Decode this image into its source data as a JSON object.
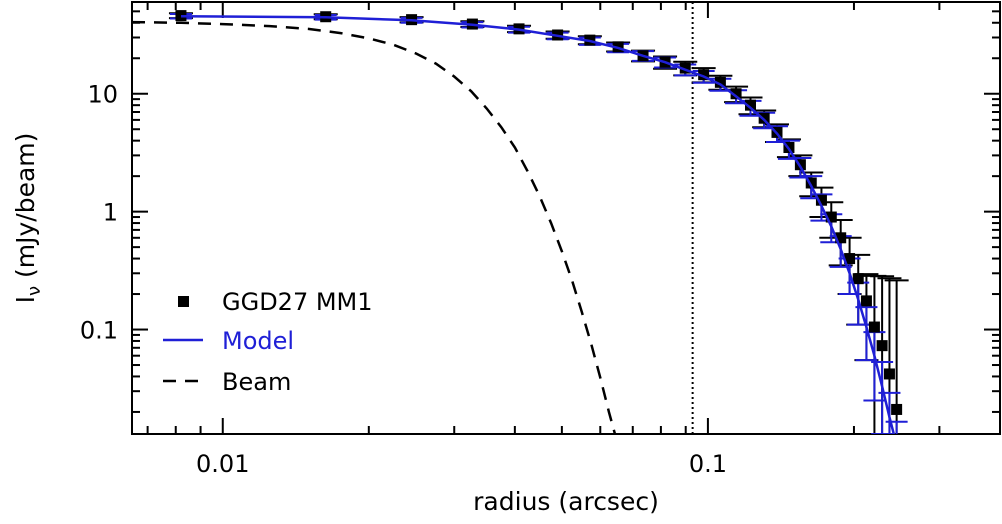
{
  "chart_data": {
    "type": "scatter",
    "xlabel": "radius (arcsec)",
    "ylabel": "Iν (mJy/beam)",
    "ylabel_main": "I",
    "ylabel_sub": "ν",
    "ylabel_unit": " (mJy/beam)",
    "x_scale": "log",
    "y_scale": "log",
    "xlim": [
      0.0065,
      0.4
    ],
    "ylim": [
      0.013,
      60
    ],
    "x_ticks": [
      {
        "value": 0.01,
        "label": "0.01"
      },
      {
        "value": 0.1,
        "label": "0.1"
      }
    ],
    "y_ticks": [
      {
        "value": 10,
        "label": "10"
      },
      {
        "value": 1,
        "label": "1"
      },
      {
        "value": 0.1,
        "label": "0.1"
      }
    ],
    "grid": false,
    "legend_position": "bottom-left",
    "reference_line": {
      "x": 0.093,
      "style": "dotted"
    },
    "series": [
      {
        "name": "GGD27 MM1",
        "color": "#000000",
        "marker": "square",
        "points": [
          {
            "x": 0.0082,
            "y": 46,
            "err": 2.2
          },
          {
            "x": 0.0163,
            "y": 45,
            "err": 2.2
          },
          {
            "x": 0.0245,
            "y": 42.5,
            "err": 2.2
          },
          {
            "x": 0.0327,
            "y": 39,
            "err": 2.2
          },
          {
            "x": 0.0408,
            "y": 35.5,
            "err": 2.2
          },
          {
            "x": 0.049,
            "y": 31.5,
            "err": 2.2
          },
          {
            "x": 0.0571,
            "y": 28.5,
            "err": 2.2
          },
          {
            "x": 0.0653,
            "y": 25,
            "err": 2.2
          },
          {
            "x": 0.0735,
            "y": 21,
            "err": 2.2
          },
          {
            "x": 0.0816,
            "y": 18.5,
            "err": 2.2
          },
          {
            "x": 0.0898,
            "y": 16.5,
            "err": 2.2
          },
          {
            "x": 0.098,
            "y": 14.5,
            "err": 2.0
          },
          {
            "x": 0.1061,
            "y": 12.5,
            "err": 1.7
          },
          {
            "x": 0.1143,
            "y": 10,
            "err": 1.5
          },
          {
            "x": 0.1224,
            "y": 8,
            "err": 1.3
          },
          {
            "x": 0.1306,
            "y": 6.2,
            "err": 1.0
          },
          {
            "x": 0.1388,
            "y": 4.7,
            "err": 0.8
          },
          {
            "x": 0.1469,
            "y": 3.5,
            "err": 0.6
          },
          {
            "x": 0.1551,
            "y": 2.5,
            "err": 0.5
          },
          {
            "x": 0.1633,
            "y": 1.75,
            "err": 0.4
          },
          {
            "x": 0.1714,
            "y": 1.25,
            "err": 0.35
          },
          {
            "x": 0.1796,
            "y": 0.9,
            "err": 0.3
          },
          {
            "x": 0.1878,
            "y": 0.6,
            "err": 0.25
          },
          {
            "x": 0.1959,
            "y": 0.4,
            "err": 0.2
          },
          {
            "x": 0.2041,
            "y": 0.27,
            "err": 0.16
          },
          {
            "x": 0.2122,
            "y": 0.175,
            "err": 0.12
          },
          {
            "x": 0.2204,
            "y": 0.105,
            "err": 0.18
          },
          {
            "x": 0.2286,
            "y": 0.073,
            "err": 0.21
          },
          {
            "x": 0.2367,
            "y": 0.042,
            "err": 0.23
          },
          {
            "x": 0.2449,
            "y": 0.021,
            "err": 0.24
          }
        ]
      },
      {
        "name": "Model",
        "color": "#1f1fd6",
        "style": "solid",
        "points": [
          {
            "x": 0.0082,
            "y": 45.5,
            "err": 2.0
          },
          {
            "x": 0.0163,
            "y": 44.5,
            "err": 2.0
          },
          {
            "x": 0.0245,
            "y": 42,
            "err": 2.0
          },
          {
            "x": 0.0327,
            "y": 38.5,
            "err": 2.0
          },
          {
            "x": 0.0408,
            "y": 35,
            "err": 2.0
          },
          {
            "x": 0.049,
            "y": 31,
            "err": 2.0
          },
          {
            "x": 0.0571,
            "y": 28,
            "err": 2.0
          },
          {
            "x": 0.0653,
            "y": 24.5,
            "err": 2.0
          },
          {
            "x": 0.0735,
            "y": 21,
            "err": 2.0
          },
          {
            "x": 0.0816,
            "y": 18.5,
            "err": 1.8
          },
          {
            "x": 0.0898,
            "y": 16,
            "err": 1.7
          },
          {
            "x": 0.098,
            "y": 14,
            "err": 1.6
          },
          {
            "x": 0.1061,
            "y": 12,
            "err": 1.4
          },
          {
            "x": 0.1143,
            "y": 9.5,
            "err": 1.2
          },
          {
            "x": 0.1224,
            "y": 7.6,
            "err": 1.1
          },
          {
            "x": 0.1306,
            "y": 6.0,
            "err": 0.9
          },
          {
            "x": 0.1388,
            "y": 4.6,
            "err": 0.7
          },
          {
            "x": 0.1469,
            "y": 3.4,
            "err": 0.6
          },
          {
            "x": 0.1551,
            "y": 2.4,
            "err": 0.45
          },
          {
            "x": 0.1633,
            "y": 1.65,
            "err": 0.35
          },
          {
            "x": 0.1714,
            "y": 1.12,
            "err": 0.28
          },
          {
            "x": 0.1796,
            "y": 0.75,
            "err": 0.2
          },
          {
            "x": 0.1878,
            "y": 0.48,
            "err": 0.14
          },
          {
            "x": 0.1959,
            "y": 0.3,
            "err": 0.1
          },
          {
            "x": 0.2041,
            "y": 0.18,
            "err": 0.07
          },
          {
            "x": 0.2122,
            "y": 0.105,
            "err": 0.05
          },
          {
            "x": 0.2204,
            "y": 0.06,
            "err": 0.035
          },
          {
            "x": 0.2286,
            "y": 0.033,
            "err": 0.02
          },
          {
            "x": 0.2367,
            "y": 0.018,
            "err": 0.011
          },
          {
            "x": 0.2449,
            "y": 0.0105,
            "err": 0.006
          }
        ]
      },
      {
        "name": "Beam",
        "color": "#000000",
        "style": "dashed",
        "points": [
          {
            "x": 0.0065,
            "y": 40.5
          },
          {
            "x": 0.0082,
            "y": 40
          },
          {
            "x": 0.01,
            "y": 39
          },
          {
            "x": 0.0125,
            "y": 37.5
          },
          {
            "x": 0.015,
            "y": 35.5
          },
          {
            "x": 0.0175,
            "y": 32.7
          },
          {
            "x": 0.02,
            "y": 29.5
          },
          {
            "x": 0.0225,
            "y": 26
          },
          {
            "x": 0.025,
            "y": 22
          },
          {
            "x": 0.0275,
            "y": 18
          },
          {
            "x": 0.03,
            "y": 14
          },
          {
            "x": 0.0325,
            "y": 10.5
          },
          {
            "x": 0.035,
            "y": 7.5
          },
          {
            "x": 0.0375,
            "y": 5.2
          },
          {
            "x": 0.04,
            "y": 3.5
          },
          {
            "x": 0.0425,
            "y": 2.2
          },
          {
            "x": 0.045,
            "y": 1.35
          },
          {
            "x": 0.0475,
            "y": 0.8
          },
          {
            "x": 0.05,
            "y": 0.46
          },
          {
            "x": 0.0525,
            "y": 0.26
          },
          {
            "x": 0.055,
            "y": 0.14
          },
          {
            "x": 0.0575,
            "y": 0.075
          },
          {
            "x": 0.06,
            "y": 0.039
          },
          {
            "x": 0.0625,
            "y": 0.02
          },
          {
            "x": 0.0645,
            "y": 0.0125
          }
        ]
      }
    ],
    "legend": [
      {
        "label": "GGD27 MM1",
        "color": "#000000",
        "symbol": "square"
      },
      {
        "label": "Model",
        "color": "#1f1fd6",
        "symbol": "solid-line"
      },
      {
        "label": "Beam",
        "color": "#000000",
        "symbol": "dashed-line"
      }
    ]
  }
}
